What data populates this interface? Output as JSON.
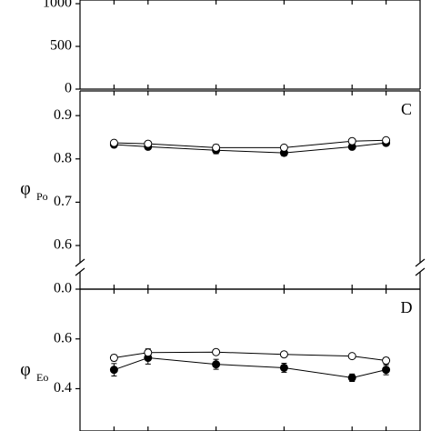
{
  "chart_data": [
    {
      "type": "line",
      "x": [
        1,
        2,
        4,
        6,
        8,
        9
      ],
      "xlim": [
        0,
        10
      ],
      "ylim": [
        0,
        1043
      ],
      "yticks": [
        0,
        500,
        1000
      ],
      "series": []
    },
    {
      "type": "line",
      "annotation": "C",
      "ylabel": "φ",
      "ylabel_sub": "Po",
      "x": [
        1,
        2,
        4,
        6,
        8,
        9
      ],
      "xlim": [
        0,
        10
      ],
      "ylim": [
        0,
        0.957
      ],
      "ybreak": [
        0,
        0.6
      ],
      "yticks": [
        {
          "value": 0,
          "label": "0.0"
        },
        0.6,
        0.7,
        0.8,
        0.9
      ],
      "series": [
        {
          "color": "#000000",
          "values": [
            0.833,
            0.828,
            0.82,
            0.814,
            0.828,
            0.837
          ],
          "errors": [
            0.004,
            0.004,
            0.008,
            0.007,
            0.005,
            0.004
          ]
        },
        {
          "color": "#ffffff",
          "values": [
            0.837,
            0.835,
            0.826,
            0.826,
            0.841,
            0.843
          ],
          "errors": [
            0.003,
            0.003,
            0.007,
            0.004,
            0.004,
            0.004
          ]
        }
      ]
    },
    {
      "type": "line",
      "annotation": "D",
      "ylabel": "φ",
      "ylabel_sub": "Eo",
      "x": [
        1,
        2,
        4,
        6,
        8,
        9
      ],
      "xlim": [
        0,
        10
      ],
      "ylim": [
        0.23,
        0.8
      ],
      "yticks": [
        0.4,
        0.6
      ],
      "series": [
        {
          "color": "#000000",
          "values": [
            0.476,
            0.524,
            0.498,
            0.484,
            0.444,
            0.476
          ],
          "errors": [
            0.025,
            0.025,
            0.02,
            0.018,
            0.015,
            0.02
          ]
        },
        {
          "color": "#ffffff",
          "values": [
            0.524,
            0.545,
            0.547,
            0.538,
            0.531,
            0.513
          ],
          "errors": [
            0.012,
            0.015,
            0.008,
            0.008,
            0.008,
            0.012
          ]
        }
      ]
    }
  ]
}
